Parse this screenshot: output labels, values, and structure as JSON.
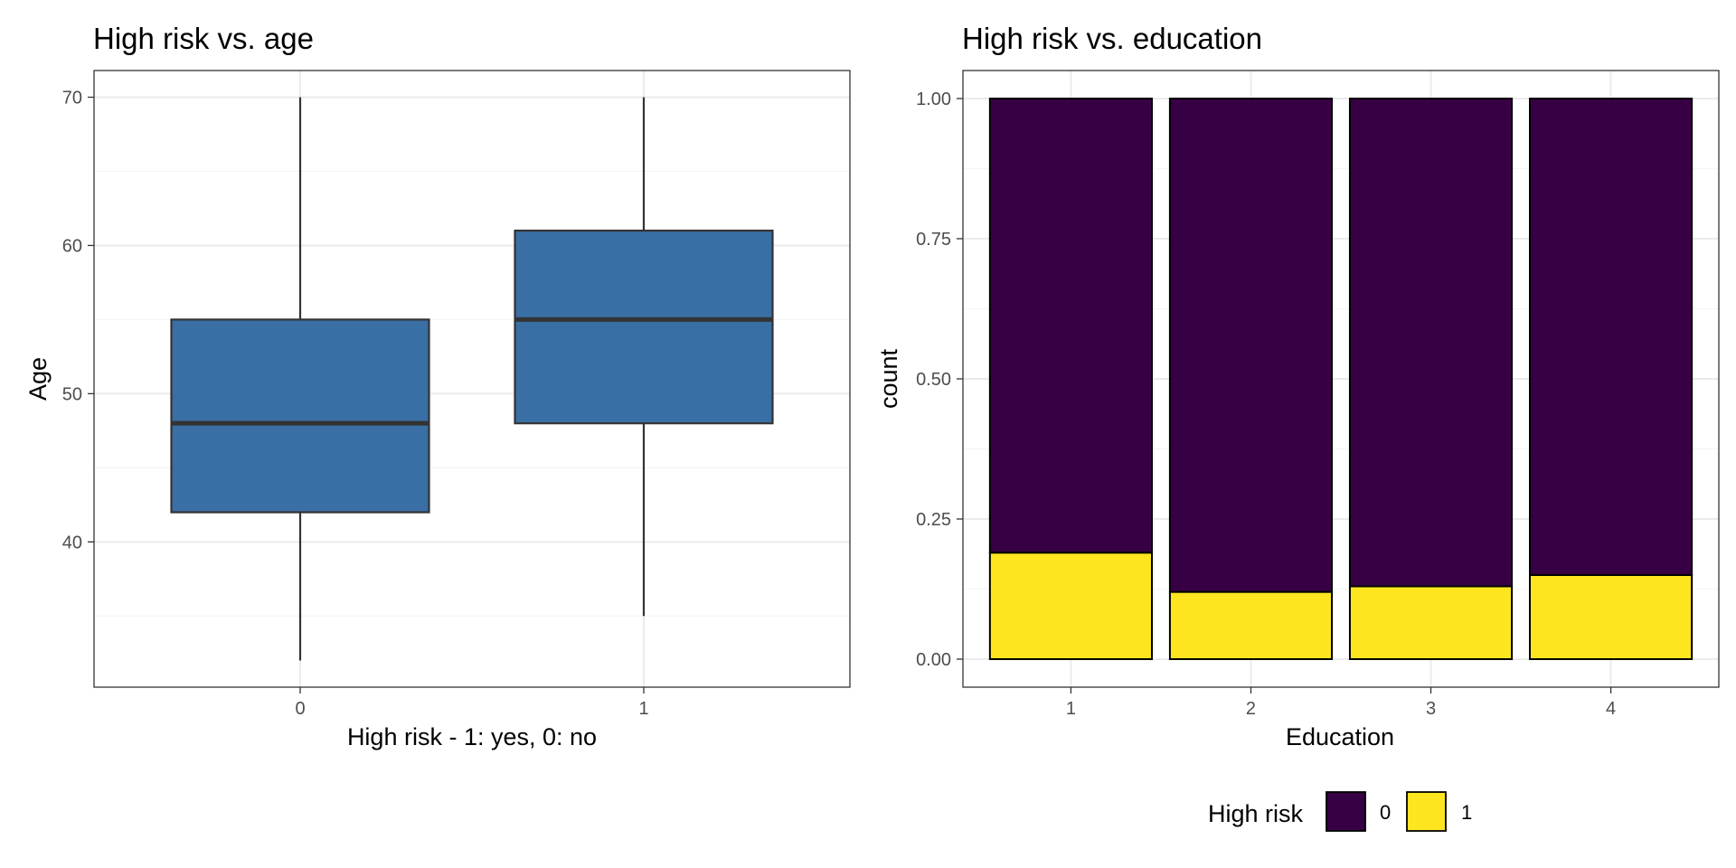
{
  "chart_data": [
    {
      "type": "box",
      "title": "High risk vs. age",
      "xlabel": "High risk - 1: yes, 0: no",
      "ylabel": "Age",
      "categories": [
        "0",
        "1"
      ],
      "boxes": [
        {
          "category": "0",
          "whisker_low": 32,
          "q1": 42,
          "median": 48,
          "q3": 55,
          "whisker_high": 70
        },
        {
          "category": "1",
          "whisker_low": 35,
          "q1": 48,
          "median": 55,
          "q3": 61,
          "whisker_high": 70
        }
      ],
      "ylim": [
        30.2,
        71.8
      ],
      "yticks": [
        40,
        50,
        60,
        70
      ],
      "ytick_labels": [
        "40",
        "50",
        "60",
        "70"
      ],
      "fill_color": "#3A6FA5",
      "grid": true
    },
    {
      "type": "bar",
      "stacked": true,
      "position": "fill",
      "title": "High risk vs. education",
      "xlabel": "Education",
      "ylabel": "count",
      "categories": [
        "1",
        "2",
        "3",
        "4"
      ],
      "series": [
        {
          "name": "0",
          "values": [
            0.81,
            0.88,
            0.87,
            0.85
          ],
          "color": "#380044"
        },
        {
          "name": "1",
          "values": [
            0.19,
            0.12,
            0.13,
            0.15
          ],
          "color": "#FDE520"
        }
      ],
      "ylim": [
        -0.05,
        1.05
      ],
      "yticks": [
        0,
        0.25,
        0.5,
        0.75,
        1
      ],
      "ytick_labels": [
        "0.00",
        "0.25",
        "0.50",
        "0.75",
        "1.00"
      ],
      "legend": {
        "title": "High risk",
        "entries": [
          "0",
          "1"
        ],
        "position": "bottom"
      },
      "grid": true
    }
  ]
}
